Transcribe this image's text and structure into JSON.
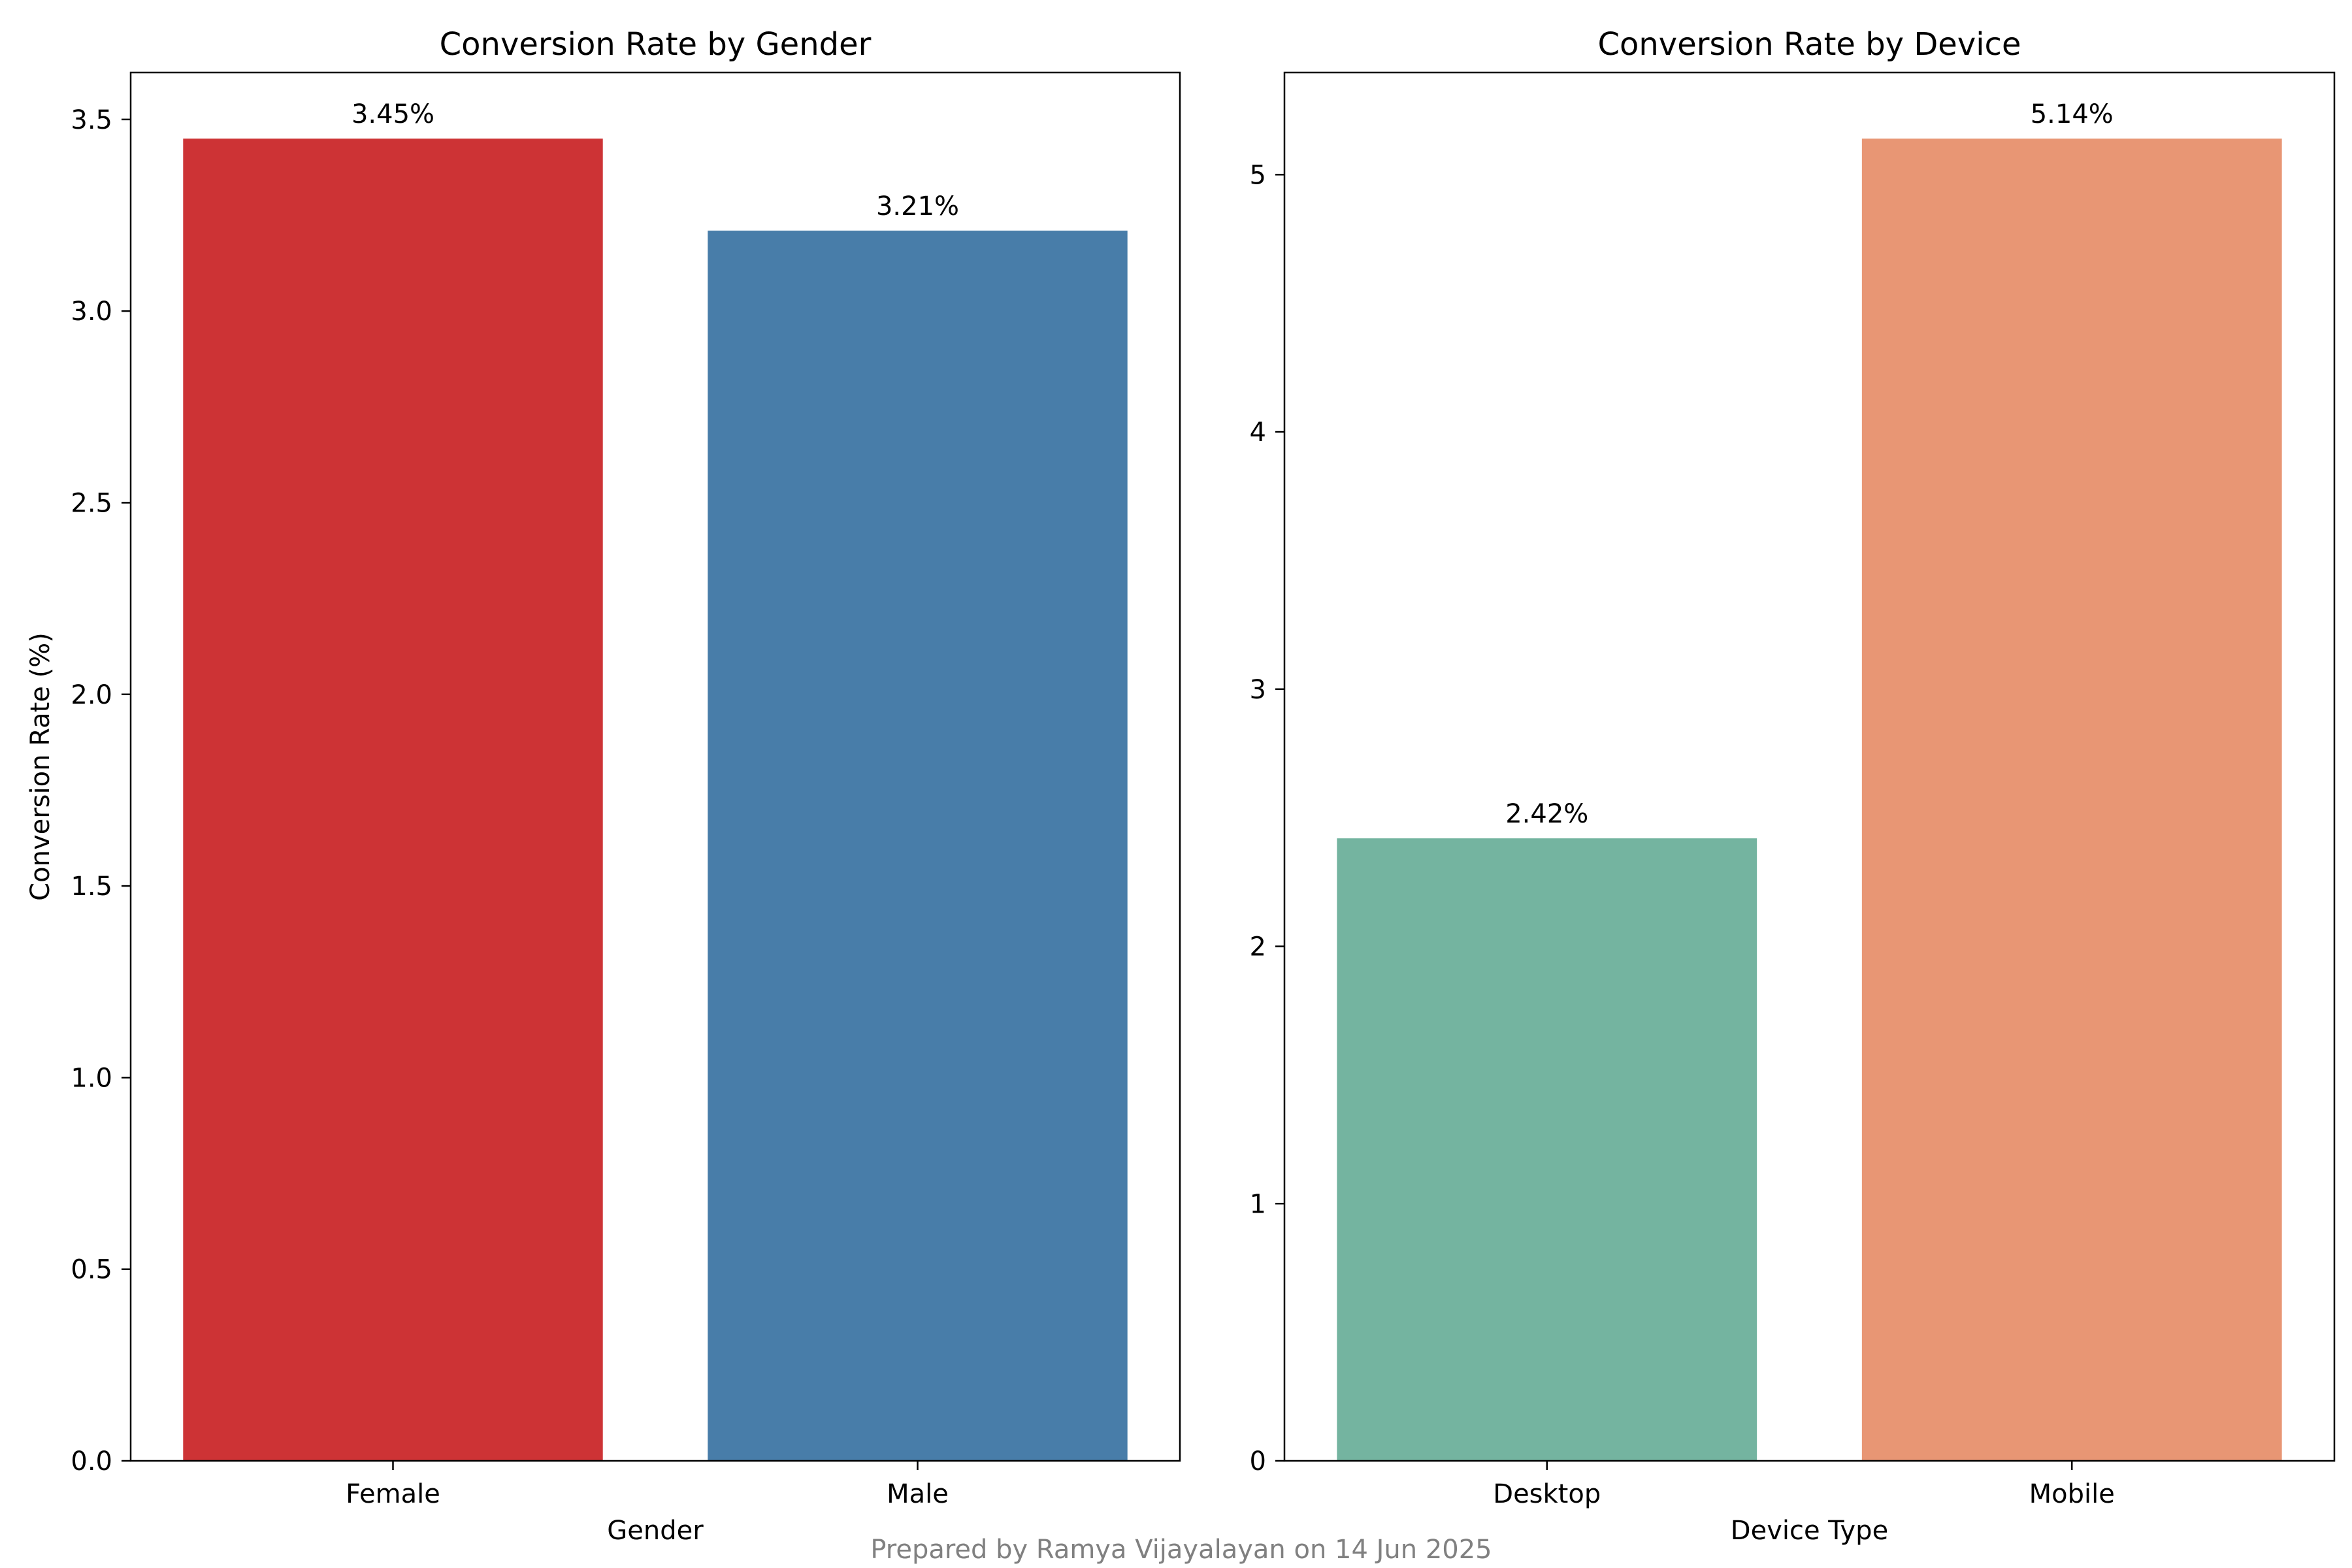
{
  "chart_data": [
    {
      "type": "bar",
      "title": "Conversion Rate by Gender",
      "xlabel": "Gender",
      "ylabel": "Conversion Rate (%)",
      "categories": [
        "Female",
        "Male"
      ],
      "values": [
        3.45,
        3.21
      ],
      "data_labels": [
        "3.45%",
        "3.21%"
      ],
      "colors": [
        "#cd3335",
        "#487da9"
      ],
      "ylim": [
        0,
        3.6225
      ],
      "yticks": [
        0.0,
        0.5,
        1.0,
        1.5,
        2.0,
        2.5,
        3.0,
        3.5
      ],
      "ytick_labels": [
        "0.0",
        "0.5",
        "1.0",
        "1.5",
        "2.0",
        "2.5",
        "3.0",
        "3.5"
      ],
      "grid": false,
      "legend": "none"
    },
    {
      "type": "bar",
      "title": "Conversion Rate by Device",
      "xlabel": "Device Type",
      "ylabel": "",
      "categories": [
        "Desktop",
        "Mobile"
      ],
      "values": [
        2.42,
        5.14
      ],
      "data_labels": [
        "2.42%",
        "5.14%"
      ],
      "colors": [
        "#74b4a0",
        "#e89674"
      ],
      "ylim": [
        0,
        5.397
      ],
      "yticks": [
        0,
        1,
        2,
        3,
        4,
        5
      ],
      "ytick_labels": [
        "0",
        "1",
        "2",
        "3",
        "4",
        "5"
      ],
      "grid": false,
      "legend": "none"
    }
  ],
  "footer": "Prepared by Ramya Vijayalayan on 14 Jun 2025"
}
